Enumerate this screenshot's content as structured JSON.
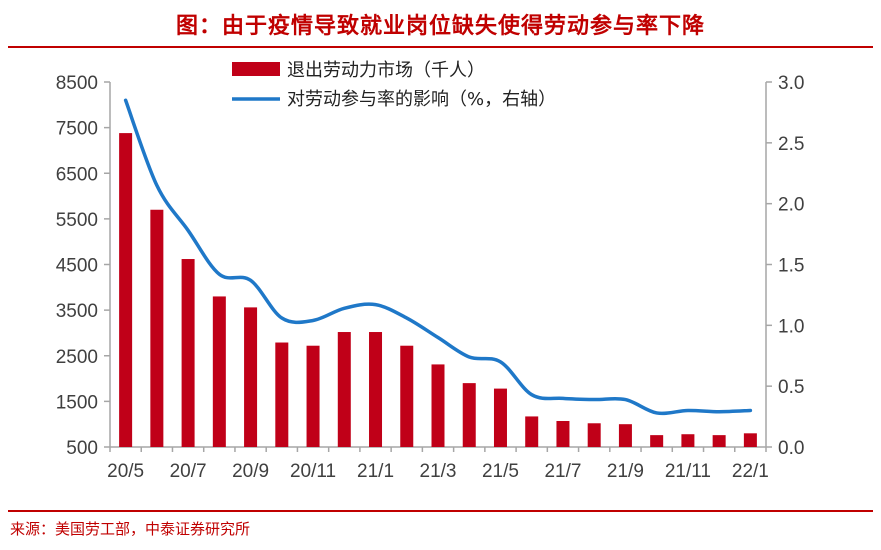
{
  "header": {
    "title": "图：由于疫情导致就业岗位缺失使得劳动参与率下降"
  },
  "footer": {
    "source": "来源：美国劳工部，中泰证券研究所"
  },
  "colors": {
    "bar": "#c00018",
    "line": "#1f78c8",
    "accent": "#c00000"
  },
  "chart_data": {
    "type": "bar",
    "title": "图：由于疫情导致就业岗位缺失使得劳动参与率下降",
    "xlabel": "",
    "ylabel": "",
    "categories": [
      "20/5",
      "20/6",
      "20/7",
      "20/8",
      "20/9",
      "20/10",
      "20/11",
      "20/12",
      "21/1",
      "21/2",
      "21/3",
      "21/4",
      "21/5",
      "21/6",
      "21/7",
      "21/8",
      "21/9",
      "21/10",
      "21/11",
      "21/12",
      "22/1"
    ],
    "x_tick_labels": [
      "20/5",
      "20/7",
      "20/9",
      "20/11",
      "21/1",
      "21/3",
      "21/5",
      "21/7",
      "21/9",
      "21/11",
      "22/1"
    ],
    "left_ylim": [
      500,
      8500
    ],
    "left_yticks": [
      500,
      1500,
      2500,
      3500,
      4500,
      5500,
      6500,
      7500,
      8500
    ],
    "right_ylim": [
      0,
      3
    ],
    "right_yticks": [
      "0.0",
      "0.5",
      "1.0",
      "1.5",
      "2.0",
      "2.5",
      "3.0"
    ],
    "series": [
      {
        "name": "退出劳动力市场（千人）",
        "type": "bar",
        "axis": "left",
        "values": [
          7380,
          5700,
          4620,
          3800,
          3560,
          2790,
          2720,
          3020,
          3020,
          2720,
          2310,
          1900,
          1780,
          1170,
          1070,
          1020,
          1000,
          760,
          780,
          760,
          800
        ]
      },
      {
        "name": "对劳动参与率的影响（%，右轴）",
        "type": "line",
        "axis": "right",
        "values": [
          2.85,
          2.15,
          1.78,
          1.42,
          1.37,
          1.06,
          1.04,
          1.14,
          1.17,
          1.06,
          0.9,
          0.74,
          0.7,
          0.43,
          0.4,
          0.39,
          0.39,
          0.28,
          0.3,
          0.29,
          0.3
        ]
      }
    ],
    "legend": "top-center"
  }
}
